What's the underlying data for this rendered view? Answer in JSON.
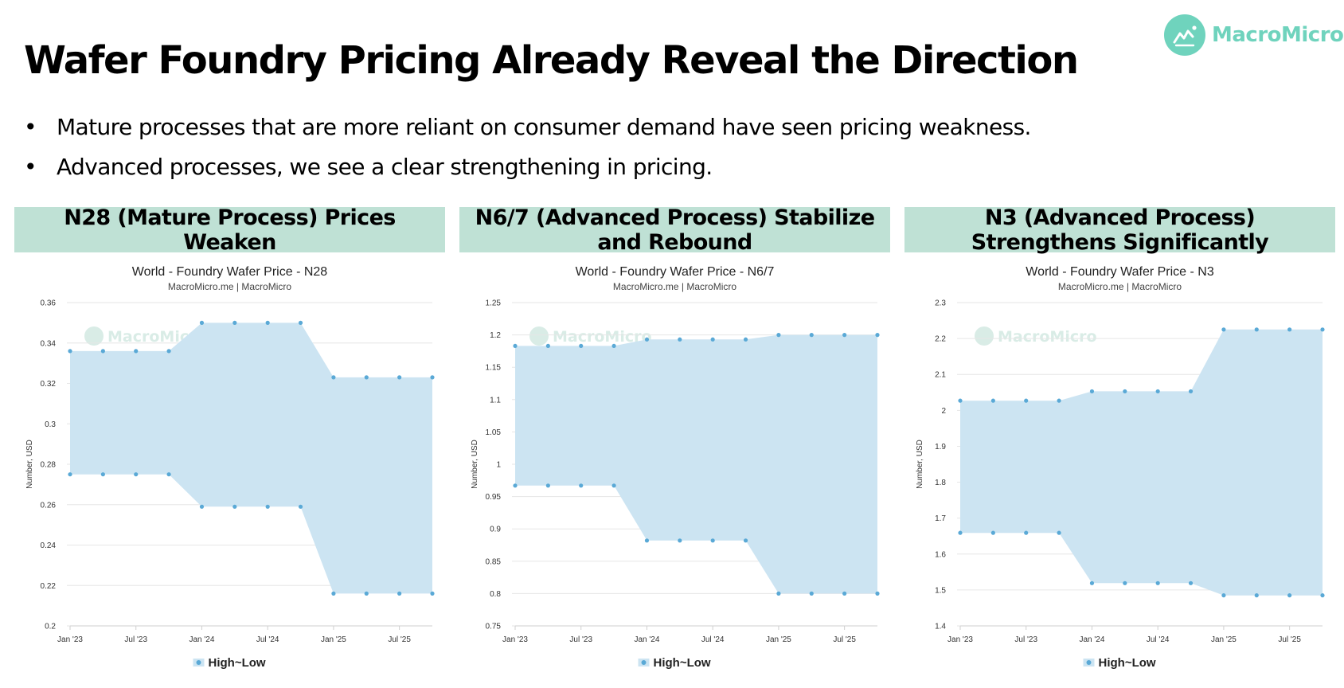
{
  "page": {
    "title": "Wafer Foundry Pricing Already Reveal the Direction",
    "bullets": [
      "Mature processes that are more reliant on consumer demand have seen pricing weakness.",
      "Advanced processes, we see a clear strengthening in pricing."
    ],
    "bullet_symbol": "•",
    "logo": {
      "text": "MacroMicro",
      "icon": "macromicro-logo-icon",
      "color": "#6fd3bd"
    }
  },
  "panels": [
    {
      "header": "N28 (Mature Process) Prices Weaken"
    },
    {
      "header": "N6/7 (Advanced Process) Stabilize and Rebound"
    },
    {
      "header": "N3 (Advanced Process) Strengthens Significantly"
    }
  ],
  "chart_data": [
    {
      "type": "area",
      "title": "World - Foundry Wafer Price - N28",
      "subtitle": "MacroMicro.me | MacroMicro",
      "ylabel": "Number, USD",
      "watermark": "MacroMicro",
      "x": [
        "2023-01",
        "2023-04",
        "2023-07",
        "2023-10",
        "2024-01",
        "2024-04",
        "2024-07",
        "2024-10",
        "2025-01",
        "2025-04",
        "2025-07",
        "2025-10"
      ],
      "x_ticks": [
        "Jan '23",
        "Jul '23",
        "Jan '24",
        "Jul '24",
        "Jan '25",
        "Jul '25"
      ],
      "y_ticks": [
        "0.2",
        "0.22",
        "0.24",
        "0.26",
        "0.28",
        "0.3",
        "0.32",
        "0.34",
        "0.36"
      ],
      "ylim": [
        0.2,
        0.36
      ],
      "legend": "High~Low",
      "legend_position": "bottom-center",
      "grid": true,
      "series": [
        {
          "role": "high",
          "values": [
            0.336,
            0.336,
            0.336,
            0.336,
            0.35,
            0.35,
            0.35,
            0.35,
            0.323,
            0.323,
            0.323,
            0.323
          ]
        },
        {
          "role": "low",
          "values": [
            0.275,
            0.275,
            0.275,
            0.275,
            0.259,
            0.259,
            0.259,
            0.259,
            0.216,
            0.216,
            0.216,
            0.216
          ]
        }
      ]
    },
    {
      "type": "area",
      "title": "World - Foundry Wafer Price - N6/7",
      "subtitle": "MacroMicro.me | MacroMicro",
      "ylabel": "Number, USD",
      "watermark": "MacroMicro",
      "x": [
        "2023-01",
        "2023-04",
        "2023-07",
        "2023-10",
        "2024-01",
        "2024-04",
        "2024-07",
        "2024-10",
        "2025-01",
        "2025-04",
        "2025-07",
        "2025-10"
      ],
      "x_ticks": [
        "Jan '23",
        "Jul '23",
        "Jan '24",
        "Jul '24",
        "Jan '25",
        "Jul '25"
      ],
      "y_ticks": [
        "0.75",
        "0.8",
        "0.85",
        "0.9",
        "0.95",
        "1",
        "1.05",
        "1.1",
        "1.15",
        "1.2",
        "1.25"
      ],
      "ylim": [
        0.75,
        1.25
      ],
      "legend": "High~Low",
      "legend_position": "bottom-center",
      "grid": true,
      "series": [
        {
          "role": "high",
          "values": [
            1.183,
            1.183,
            1.183,
            1.183,
            1.193,
            1.193,
            1.193,
            1.193,
            1.2,
            1.2,
            1.2,
            1.2
          ]
        },
        {
          "role": "low",
          "values": [
            0.967,
            0.967,
            0.967,
            0.967,
            0.882,
            0.882,
            0.882,
            0.882,
            0.8,
            0.8,
            0.8,
            0.8
          ]
        }
      ]
    },
    {
      "type": "area",
      "title": "World - Foundry Wafer Price - N3",
      "subtitle": "MacroMicro.me | MacroMicro",
      "ylabel": "Number, USD",
      "watermark": "MacroMicro",
      "x": [
        "2023-01",
        "2023-04",
        "2023-07",
        "2023-10",
        "2024-01",
        "2024-04",
        "2024-07",
        "2024-10",
        "2025-01",
        "2025-04",
        "2025-07",
        "2025-10"
      ],
      "x_ticks": [
        "Jan '23",
        "Jul '23",
        "Jan '24",
        "Jul '24",
        "Jan '25",
        "Jul '25"
      ],
      "y_ticks": [
        "1.4",
        "1.5",
        "1.6",
        "1.7",
        "1.8",
        "1.9",
        "2",
        "2.1",
        "2.2",
        "2.3"
      ],
      "ylim": [
        1.4,
        2.3
      ],
      "legend": "High~Low",
      "legend_position": "bottom-center",
      "grid": true,
      "series": [
        {
          "role": "high",
          "values": [
            2.027,
            2.027,
            2.027,
            2.027,
            2.053,
            2.053,
            2.053,
            2.053,
            2.225,
            2.225,
            2.225,
            2.225
          ]
        },
        {
          "role": "low",
          "values": [
            1.659,
            1.659,
            1.659,
            1.659,
            1.519,
            1.519,
            1.519,
            1.519,
            1.485,
            1.485,
            1.485,
            1.485
          ]
        }
      ]
    }
  ],
  "colors": {
    "header_bg": "#bfe1d5",
    "area_fill": "#cce4f2",
    "marker": "#5aa9d6",
    "grid": "#e6e6e6",
    "watermark": "#d9ece6"
  }
}
